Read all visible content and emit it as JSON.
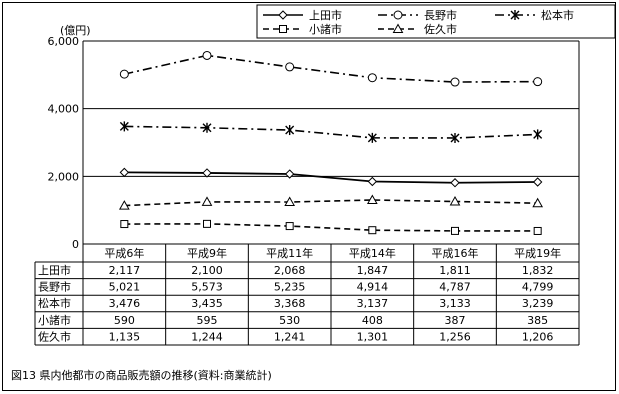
{
  "chart_data": {
    "type": "line",
    "caption": "図13 県内他都市の商品販売額の推移(資料:商業統計)",
    "y_unit_label": "(億円)",
    "ylim": [
      0,
      6000
    ],
    "yticks": [
      0,
      2000,
      4000,
      6000
    ],
    "ytick_labels": [
      "0",
      "2,000",
      "4,000",
      "6,000"
    ],
    "grid": "horizontal",
    "legend_position": "top-right",
    "categories": [
      "平成6年",
      "平成9年",
      "平成11年",
      "平成14年",
      "平成16年",
      "平成19年"
    ],
    "series": [
      {
        "name": "上田市",
        "marker": "diamond",
        "dash": "solid",
        "values": [
          2117,
          2100,
          2068,
          1847,
          1811,
          1832
        ],
        "labels": [
          "2,117",
          "2,100",
          "2,068",
          "1,847",
          "1,811",
          "1,832"
        ]
      },
      {
        "name": "長野市",
        "marker": "circle",
        "dash": "dashdot",
        "values": [
          5021,
          5573,
          5235,
          4914,
          4787,
          4799
        ],
        "labels": [
          "5,021",
          "5,573",
          "5,235",
          "4,914",
          "4,787",
          "4,799"
        ]
      },
      {
        "name": "松本市",
        "marker": "star",
        "dash": "dashdot",
        "values": [
          3476,
          3435,
          3368,
          3137,
          3133,
          3239
        ],
        "labels": [
          "3,476",
          "3,435",
          "3,368",
          "3,137",
          "3,133",
          "3,239"
        ]
      },
      {
        "name": "小諸市",
        "marker": "square",
        "dash": "dashed",
        "values": [
          590,
          595,
          530,
          408,
          387,
          385
        ],
        "labels": [
          "590",
          "595",
          "530",
          "408",
          "387",
          "385"
        ]
      },
      {
        "name": "佐久市",
        "marker": "triangle",
        "dash": "dashed",
        "values": [
          1135,
          1244,
          1241,
          1301,
          1256,
          1206
        ],
        "labels": [
          "1,135",
          "1,244",
          "1,241",
          "1,301",
          "1,256",
          "1,206"
        ]
      }
    ],
    "legend_rows": [
      [
        "上田市",
        "長野市",
        "松本市"
      ],
      [
        "小諸市",
        "佐久市"
      ]
    ],
    "colors": {
      "line": "#000000",
      "marker_fill": "#ffffff",
      "grid": "#000000"
    }
  }
}
